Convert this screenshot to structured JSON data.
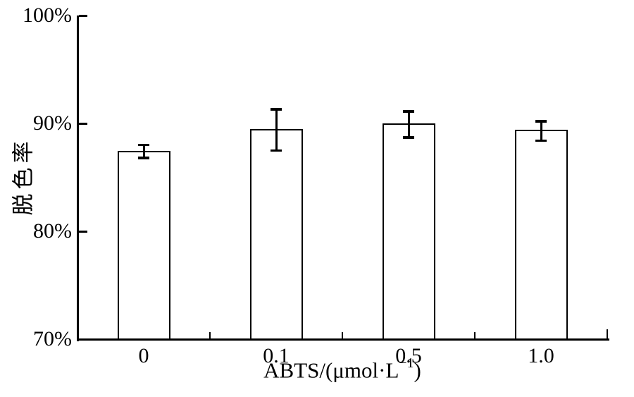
{
  "chart_data": {
    "type": "bar",
    "categories": [
      "0",
      "0.1",
      "0.5",
      "1.0"
    ],
    "values": [
      87.4,
      89.4,
      89.9,
      89.3
    ],
    "errors": [
      0.6,
      1.9,
      1.2,
      0.9
    ],
    "value_unit": "%",
    "xlabel": "ABTS/(μmol·L⁻¹)",
    "xlabel_parts": {
      "base": "ABTS/(μmol·L",
      "superscript": "−1",
      "close": ")"
    },
    "ylabel": "脱色率",
    "ylim": [
      70,
      100
    ],
    "yticks": [
      70,
      80,
      90,
      100
    ],
    "ytick_labels": [
      "70%",
      "80%",
      "90%",
      "100%"
    ],
    "grid": false,
    "legend": "none",
    "error_bars": true,
    "bar_fill": "#ffffff",
    "bar_stroke": "#000000",
    "axis_color": "#000000",
    "text_color": "#000000"
  }
}
